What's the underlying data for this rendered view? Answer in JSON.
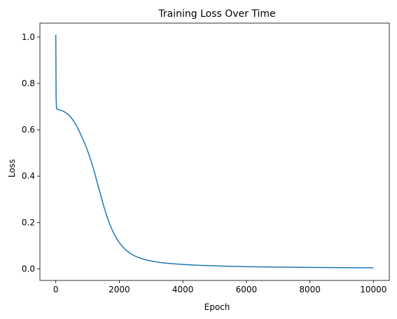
{
  "chart_data": {
    "type": "line",
    "title": "Training Loss Over Time",
    "xlabel": "Epoch",
    "ylabel": "Loss",
    "xlim": [
      -500,
      10500
    ],
    "ylim": [
      -0.05,
      1.06
    ],
    "xticks": [
      0,
      2000,
      4000,
      6000,
      8000,
      10000
    ],
    "xtick_labels": [
      "0",
      "2000",
      "4000",
      "6000",
      "8000",
      "10000"
    ],
    "yticks": [
      0.0,
      0.2,
      0.4,
      0.6,
      0.8,
      1.0
    ],
    "ytick_labels": [
      "0.0",
      "0.2",
      "0.4",
      "0.6",
      "0.8",
      "1.0"
    ],
    "grid": false,
    "line_color": "#1f77b4",
    "series": [
      {
        "x": [
          0,
          10,
          20,
          30,
          50,
          100,
          200,
          300,
          400,
          500,
          600,
          700,
          800,
          900,
          1000,
          1100,
          1200,
          1300,
          1400,
          1500,
          1600,
          1700,
          1800,
          1900,
          2000,
          2100,
          2200,
          2300,
          2400,
          2500,
          2600,
          2800,
          3000,
          3200,
          3500,
          4000,
          4500,
          5000,
          5500,
          6000,
          7000,
          8000,
          9000,
          10000
        ],
        "y": [
          1.01,
          0.74,
          0.7,
          0.69,
          0.688,
          0.686,
          0.682,
          0.675,
          0.665,
          0.65,
          0.63,
          0.605,
          0.575,
          0.545,
          0.51,
          0.47,
          0.425,
          0.375,
          0.325,
          0.275,
          0.23,
          0.192,
          0.16,
          0.134,
          0.113,
          0.096,
          0.082,
          0.071,
          0.062,
          0.055,
          0.049,
          0.04,
          0.034,
          0.029,
          0.024,
          0.019,
          0.0155,
          0.013,
          0.011,
          0.0095,
          0.0075,
          0.0062,
          0.0053,
          0.0045
        ]
      }
    ]
  }
}
